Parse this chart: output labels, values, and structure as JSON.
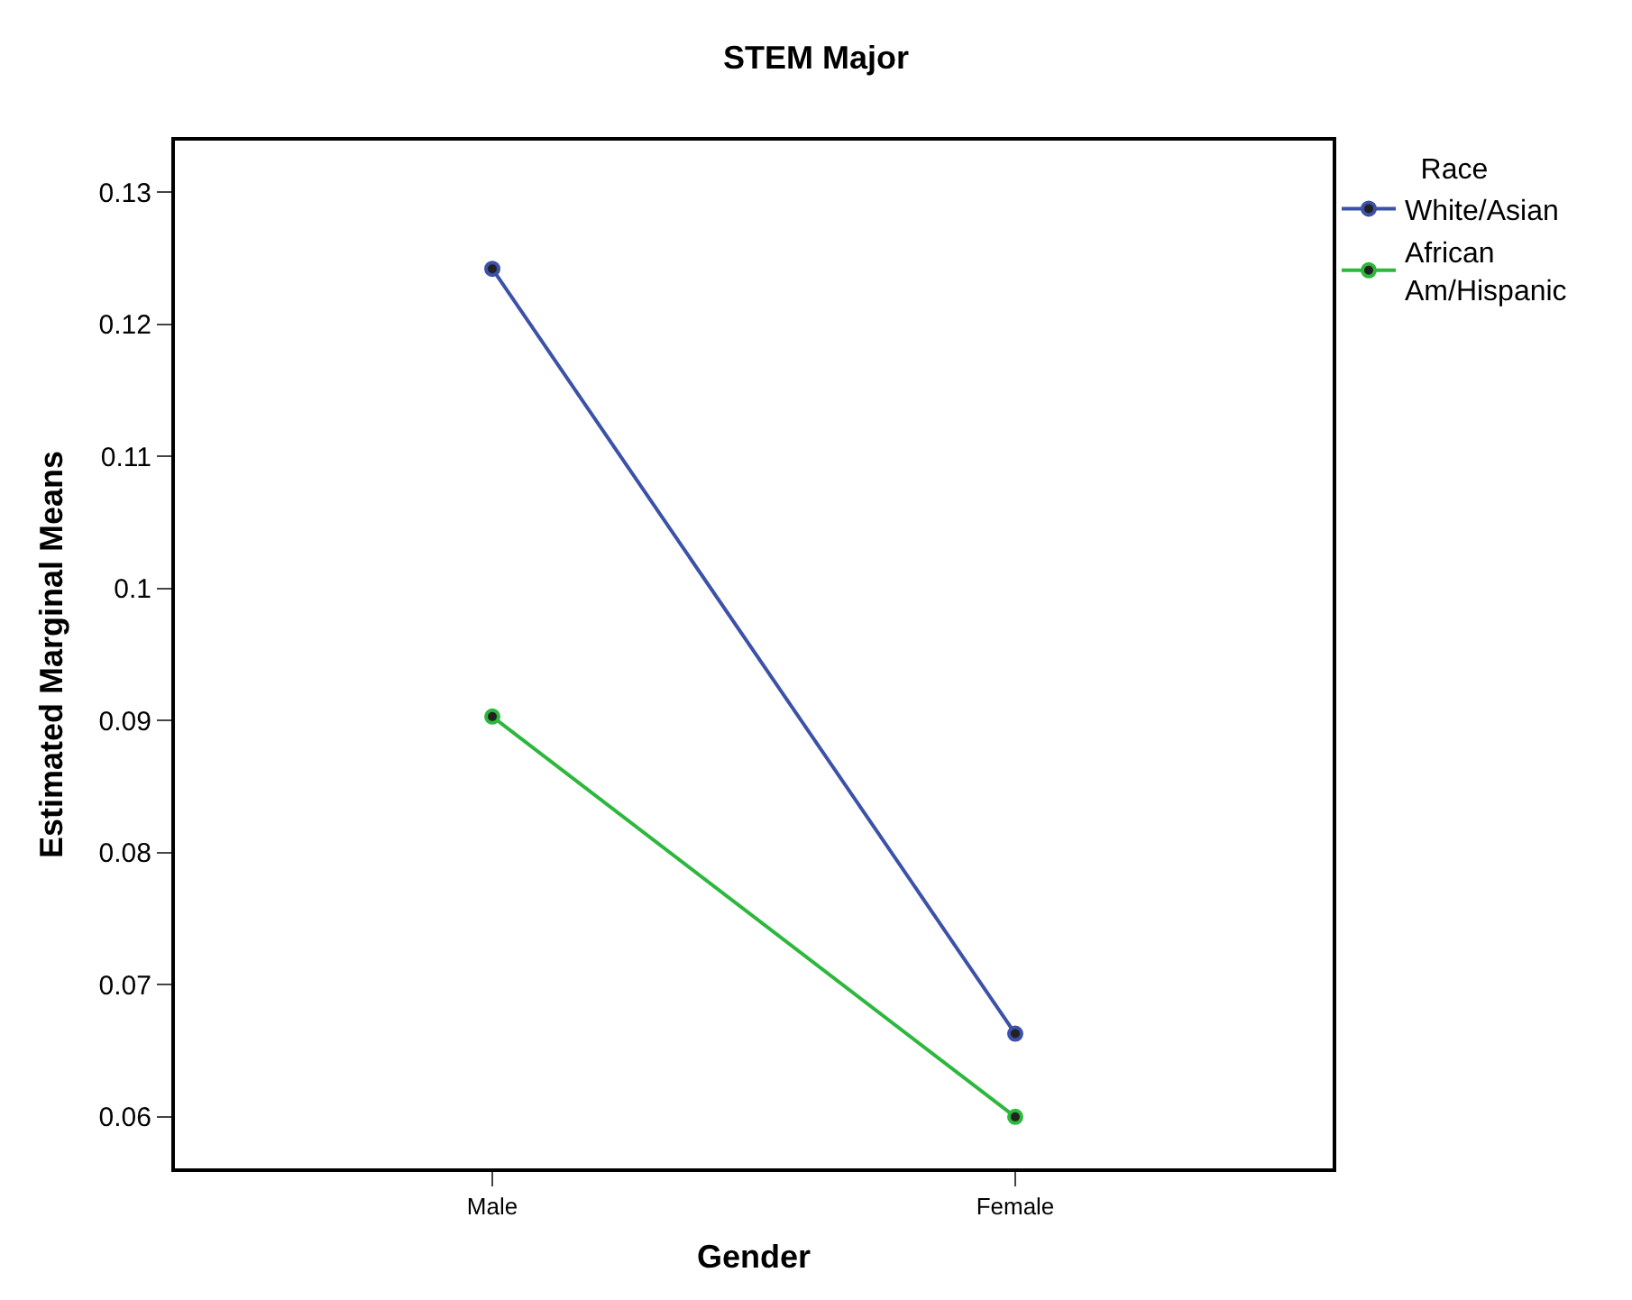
{
  "chart_data": {
    "type": "line",
    "title": "STEM Major",
    "xlabel": "Gender",
    "ylabel": "Estimated Marginal Means",
    "legend_title": "Race",
    "categories": [
      "Male",
      "Female"
    ],
    "series": [
      {
        "name": "White/Asian",
        "color": "#3c51a8",
        "values": [
          0.1242,
          0.0663
        ]
      },
      {
        "name": "African Am/Hispanic",
        "color": "#2db83d",
        "values": [
          0.0903,
          0.06
        ]
      }
    ],
    "ylim": [
      0.0561,
      0.1339
    ],
    "yticks": [
      {
        "value": 0.06,
        "label": "0.06"
      },
      {
        "value": 0.07,
        "label": "0.07"
      },
      {
        "value": 0.08,
        "label": "0.08"
      },
      {
        "value": 0.09,
        "label": "0.09"
      },
      {
        "value": 0.1,
        "label": "0.1"
      },
      {
        "value": 0.11,
        "label": "0.11"
      },
      {
        "value": 0.12,
        "label": "0.12"
      },
      {
        "value": 0.13,
        "label": "0.13"
      }
    ],
    "legend": "top right",
    "marker": "circle",
    "line_style": "solid"
  }
}
